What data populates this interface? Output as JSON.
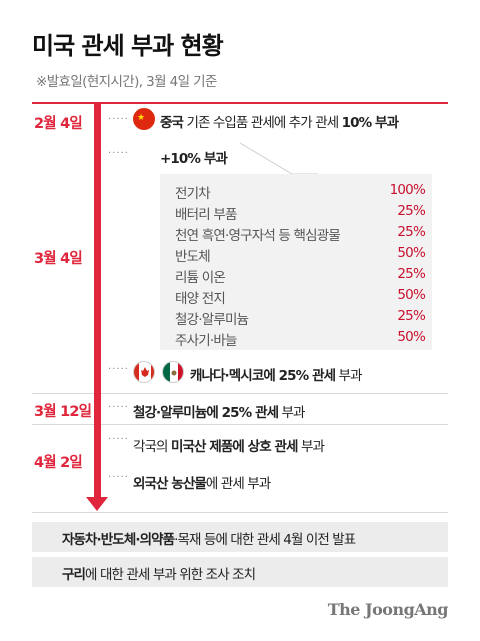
{
  "title": "미국 관세 부과 현황",
  "subtitle": "※발효일(현지시간), 3월 4일 기준",
  "colors": {
    "accent": "#e0263c",
    "box_bg": "#f2f2f2",
    "footer_bg": "#ececec"
  },
  "timeline": {
    "dates": {
      "feb4": "2월 4일",
      "mar4": "3월 4일",
      "mar12": "3월 12일",
      "apr2": "4월 2일"
    },
    "china": {
      "flag_icon": "china-flag-icon",
      "bold1": "중국",
      "text1": " 기존 수입품 관세에 추가 관세 ",
      "bold2": "10% 부과"
    },
    "item_header": "+10% 부과",
    "items": [
      {
        "name": "전기차",
        "rate": "100%"
      },
      {
        "name": "배터리 부품",
        "rate": "25%"
      },
      {
        "name": "천연 흑연·영구자석 등 핵심광물",
        "rate": "25%"
      },
      {
        "name": "반도체",
        "rate": "50%"
      },
      {
        "name": "리튬 이온",
        "rate": "25%"
      },
      {
        "name": "태양 전지",
        "rate": "50%"
      },
      {
        "name": "철강·알루미늄",
        "rate": "25%"
      },
      {
        "name": "주사기·바늘",
        "rate": "50%"
      }
    ],
    "canmex": {
      "flag_icons": [
        "canada-flag-icon",
        "mexico-flag-icon"
      ],
      "bold": "캐나다·멕시코에 25% 관세",
      "text": " 부과"
    },
    "steel": {
      "bold": "철강·알루미늄에 25% 관세",
      "text": " 부과"
    },
    "reciprocal": {
      "text1": "각국의 ",
      "bold": "미국산 제품에 상호 관세",
      "text2": " 부과"
    },
    "agri": {
      "bold": "외국산 농산물",
      "text": "에 관세 부과"
    }
  },
  "footer": {
    "line1": {
      "bold": "자동차·반도체·의약품",
      "text": "·목재 등에 대한 관세 4월 이전 발표"
    },
    "line2": {
      "bold": "구리",
      "text": "에 대한 관세 부과 위한 조사 조치"
    }
  },
  "logo": "The JoongAng"
}
